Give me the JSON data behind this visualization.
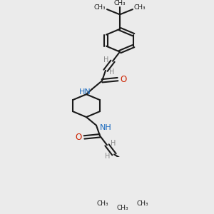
{
  "bg_color": "#ebebeb",
  "bond_color": "#1a1a1a",
  "N_color": "#1a6bbf",
  "O_color": "#cc2200",
  "H_color": "#888888",
  "line_width": 1.5,
  "figsize": [
    3.0,
    3.0
  ],
  "dpi": 100,
  "xlim": [
    0,
    300
  ],
  "ylim": [
    0,
    300
  ]
}
